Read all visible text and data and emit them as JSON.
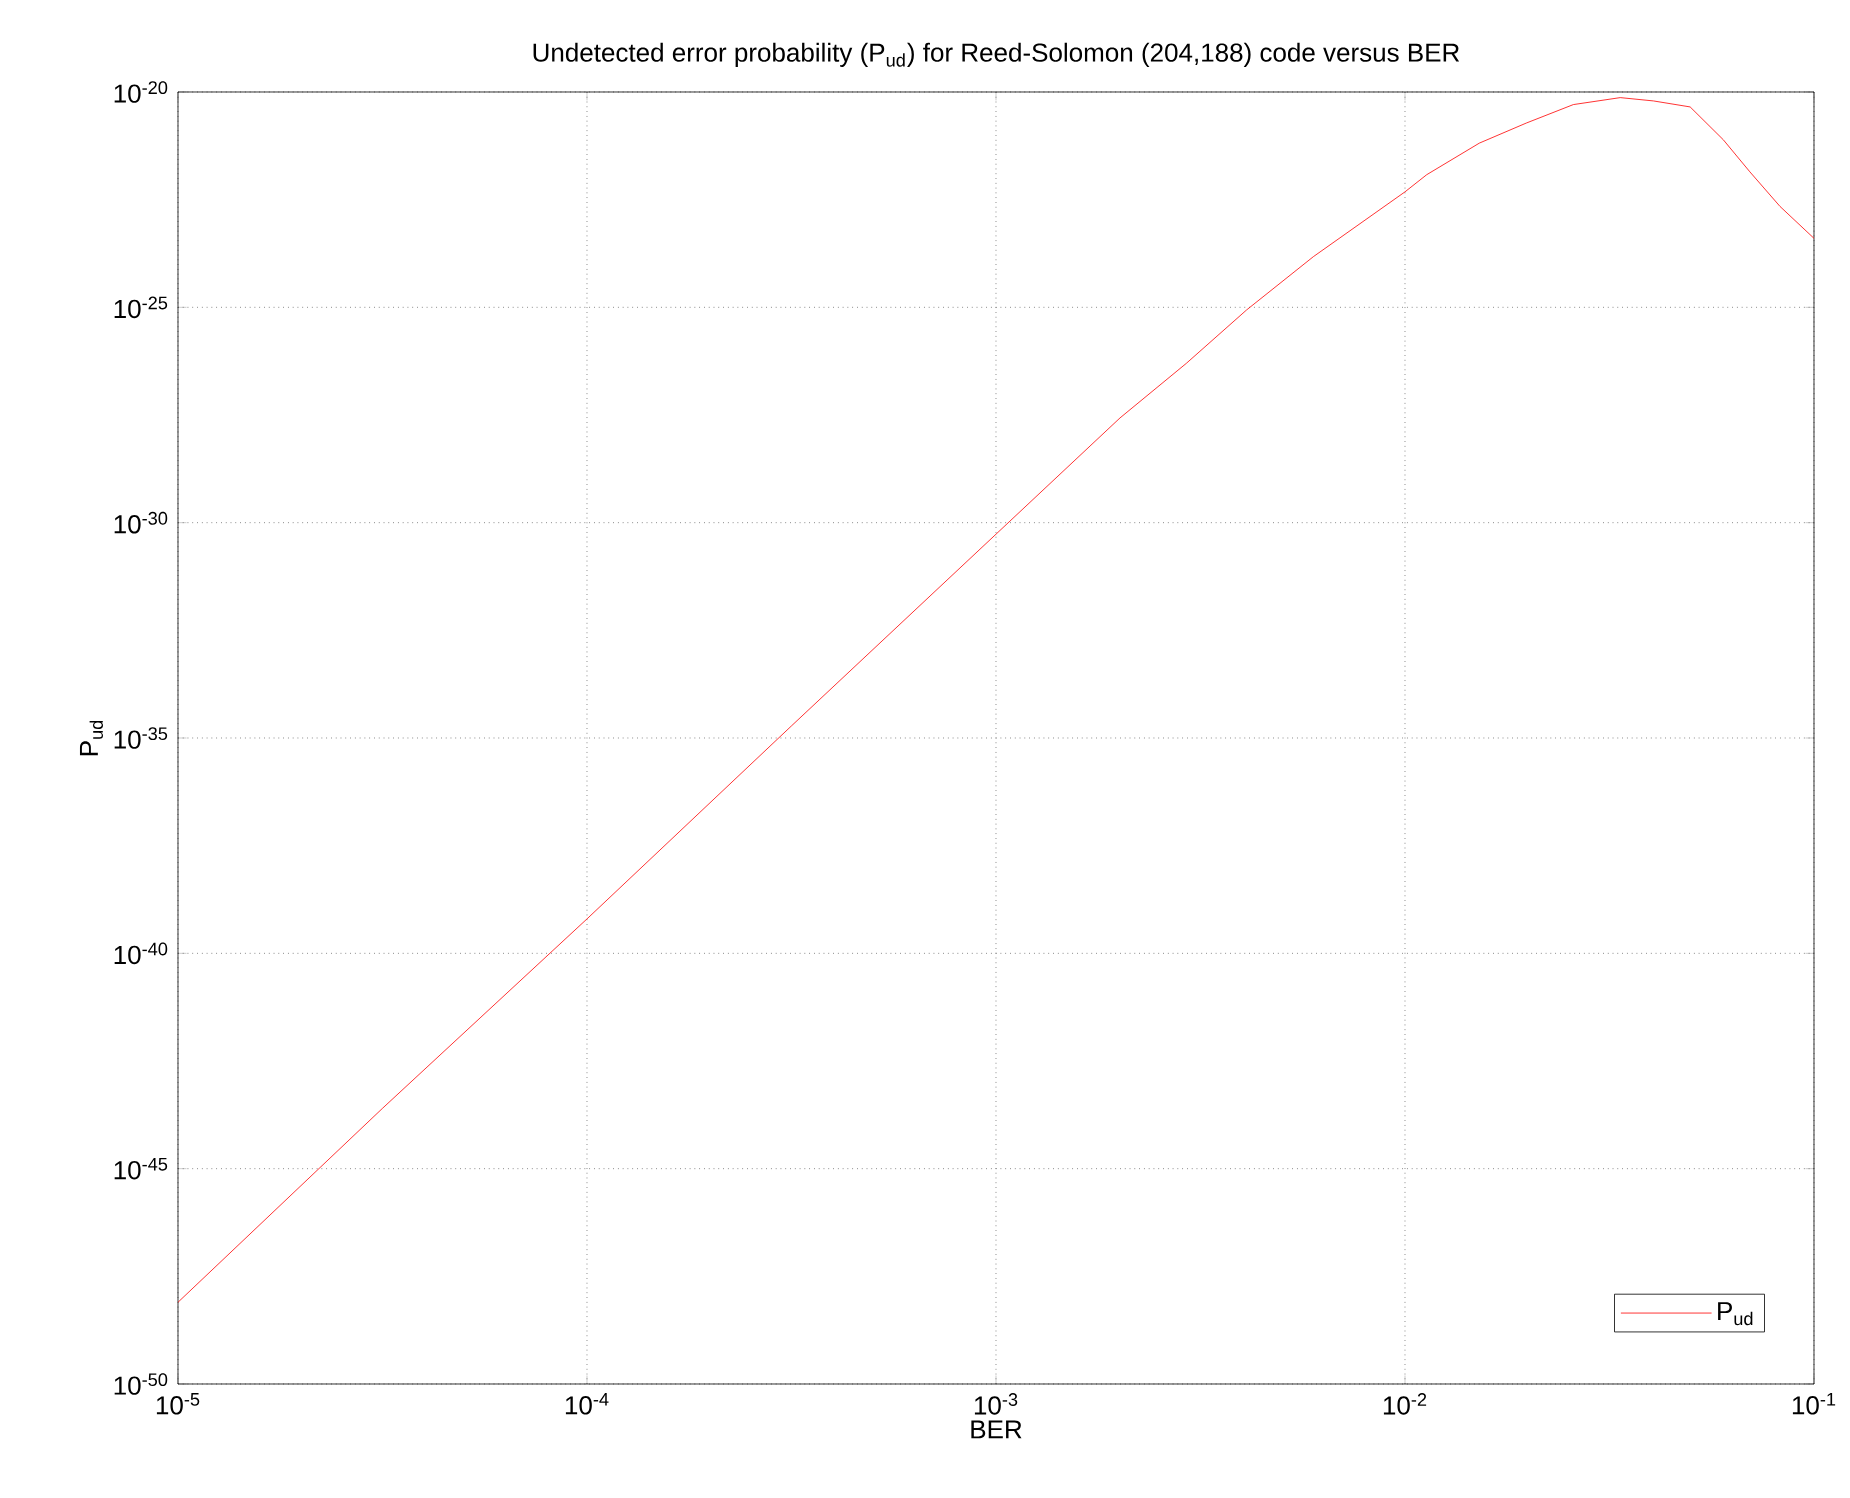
{
  "chart_data": {
    "type": "line",
    "title": "Undetected error probability (P$_{ud}$) for Reed-Solomon (204,188) code versus BER",
    "xlabel": "BER",
    "ylabel": "P$_{ud}$",
    "log": "xy",
    "grid": true,
    "legend": "bottom right",
    "xlim": [
      1e-05,
      0.1
    ],
    "ylim": [
      1e-50,
      1e-20
    ],
    "xticks": [
      {
        "value": 1e-05,
        "label": "10$^{-5}$"
      },
      {
        "value": 0.0001,
        "label": "10$^{-4}$"
      },
      {
        "value": 0.001,
        "label": "10$^{-3}$"
      },
      {
        "value": 0.01,
        "label": "10$^{-2}$"
      },
      {
        "value": 0.1,
        "label": "10$^{-1}$"
      }
    ],
    "yticks": [
      {
        "value": 1e-50,
        "label": "10$^{-50}$"
      },
      {
        "value": 1e-45,
        "label": "10$^{-45}$"
      },
      {
        "value": 1e-40,
        "label": "10$^{-40}$"
      },
      {
        "value": 1e-35,
        "label": "10$^{-35}$"
      },
      {
        "value": 1e-30,
        "label": "10$^{-30}$"
      },
      {
        "value": 1e-25,
        "label": "10$^{-25}$"
      },
      {
        "value": 1e-20,
        "label": "10$^{-20}$"
      }
    ],
    "x": [
      1e-05,
      3.16e-05,
      0.0001,
      0.000316,
      0.001,
      0.00201,
      0.00292,
      0.0041,
      0.00597,
      0.01,
      0.0113,
      0.0152,
      0.0198,
      0.0258,
      0.0336,
      0.0405,
      0.0498,
      0.06,
      0.0697,
      0.0826,
      0.1
    ],
    "series": [
      {
        "name": "P$_{ud}$",
        "color": "#ff0000",
        "values": [
          7.9e-49,
          2.5e-44,
          6.3e-40,
          1.9e-35,
          5.4e-31,
          2.7e-28,
          5e-27,
          8.7e-26,
          1.5e-24,
          4.8e-23,
          1.2e-22,
          6.5e-22,
          1.9e-21,
          5.1e-21,
          7.4e-21,
          6.2e-21,
          4.5e-21,
          7.8e-22,
          1.4e-22,
          2.2e-23,
          4e-24
        ]
      }
    ]
  }
}
